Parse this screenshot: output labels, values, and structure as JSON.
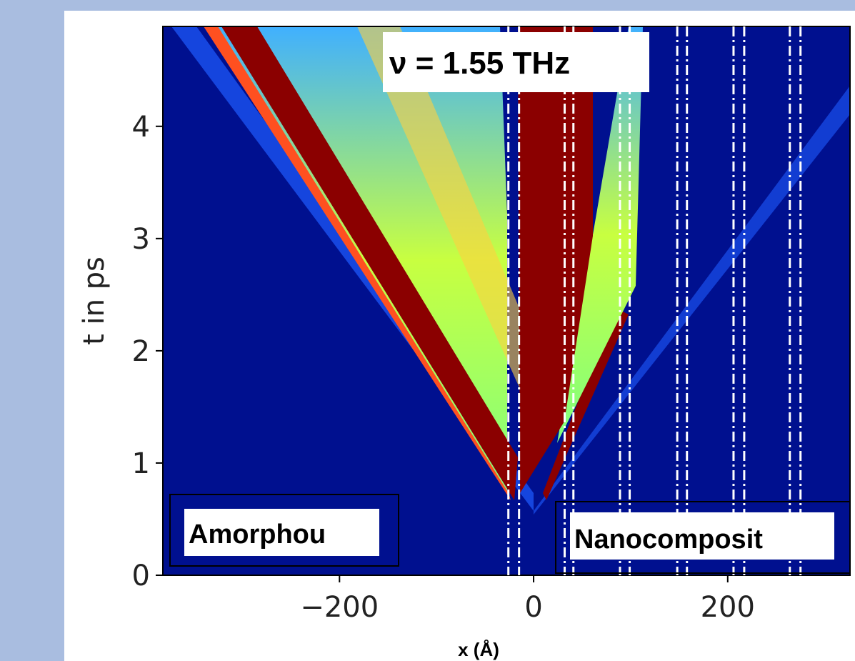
{
  "chart_data": {
    "type": "heatmap",
    "title": "ν = 1.55 THz",
    "x_label": "x (Å)",
    "y_label": "t in ps",
    "xlim": [
      -382,
      326
    ],
    "ylim": [
      0,
      4.89
    ],
    "xticks": [
      {
        "value": -200,
        "label": "−200"
      },
      0,
      200
    ],
    "yticks": [
      0,
      1,
      2,
      3,
      4
    ],
    "interfaces": [
      -26,
      -15,
      32,
      41,
      89,
      99,
      148,
      158,
      206,
      217,
      264,
      275
    ],
    "annotations": [
      "Amorphou",
      "Nanocomposit"
    ]
  }
}
